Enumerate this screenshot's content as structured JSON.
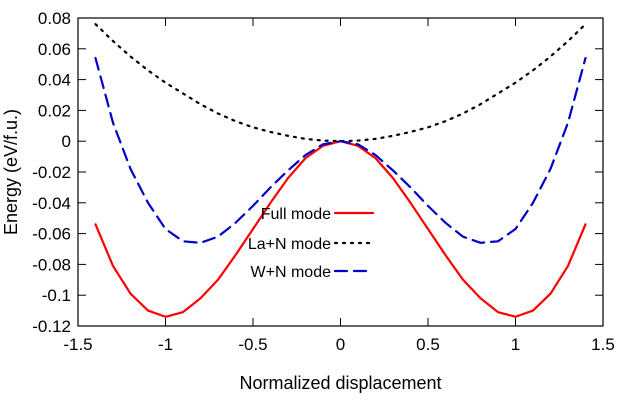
{
  "chart_data": {
    "type": "line",
    "title": "",
    "xlabel": "Normalized displacement",
    "ylabel": "Energy (eV/f.u.)",
    "xlim": [
      -1.5,
      1.5
    ],
    "ylim": [
      -0.12,
      0.08
    ],
    "xticks": [
      -1.5,
      -1,
      -0.5,
      0,
      0.5,
      1,
      1.5
    ],
    "xtick_labels": [
      "-1.5",
      "-1",
      "-0.5",
      "0",
      "0.5",
      "1",
      "1.5"
    ],
    "yticks": [
      0.08,
      0.06,
      0.04,
      0.02,
      0,
      -0.02,
      -0.04,
      -0.06,
      -0.08,
      -0.1,
      -0.12
    ],
    "ytick_labels": [
      "0.08",
      "0.06",
      "0.04",
      "0.02",
      "0",
      "-0.02",
      "-0.04",
      "-0.06",
      "-0.08",
      "-0.1",
      "-0.12"
    ],
    "grid": false,
    "legend_position": "center",
    "series": [
      {
        "name": "Full mode",
        "color": "#ff0000",
        "dash": "solid",
        "x": [
          -1.4,
          -1.3,
          -1.2,
          -1.1,
          -1.0,
          -0.9,
          -0.8,
          -0.7,
          -0.6,
          -0.5,
          -0.4,
          -0.3,
          -0.2,
          -0.1,
          0.0,
          0.1,
          0.2,
          0.3,
          0.4,
          0.5,
          0.6,
          0.7,
          0.8,
          0.9,
          1.0,
          1.1,
          1.2,
          1.3,
          1.4
        ],
        "y": [
          -0.054,
          -0.081,
          -0.099,
          -0.11,
          -0.114,
          -0.111,
          -0.102,
          -0.09,
          -0.074,
          -0.057,
          -0.04,
          -0.024,
          -0.011,
          -0.003,
          0.0,
          -0.003,
          -0.011,
          -0.024,
          -0.04,
          -0.057,
          -0.074,
          -0.09,
          -0.102,
          -0.111,
          -0.114,
          -0.11,
          -0.099,
          -0.081,
          -0.054
        ]
      },
      {
        "name": "La+N mode",
        "color": "#000000",
        "dash": "dot",
        "x": [
          -1.4,
          -1.3,
          -1.2,
          -1.1,
          -1.0,
          -0.9,
          -0.8,
          -0.7,
          -0.6,
          -0.5,
          -0.4,
          -0.3,
          -0.2,
          -0.1,
          0.0,
          0.1,
          0.2,
          0.3,
          0.4,
          0.5,
          0.6,
          0.7,
          0.8,
          0.9,
          1.0,
          1.1,
          1.2,
          1.3,
          1.4
        ],
        "y": [
          0.076,
          0.065,
          0.055,
          0.046,
          0.038,
          0.031,
          0.024,
          0.018,
          0.013,
          0.009,
          0.006,
          0.0035,
          0.0015,
          0.0004,
          0.0,
          0.0004,
          0.0015,
          0.0035,
          0.006,
          0.009,
          0.013,
          0.018,
          0.024,
          0.031,
          0.038,
          0.046,
          0.055,
          0.065,
          0.076
        ]
      },
      {
        "name": "W+N mode",
        "color": "#0000cc",
        "dash": "dash",
        "x": [
          -1.4,
          -1.3,
          -1.2,
          -1.1,
          -1.0,
          -0.9,
          -0.8,
          -0.7,
          -0.6,
          -0.5,
          -0.4,
          -0.3,
          -0.2,
          -0.1,
          0.0,
          0.1,
          0.2,
          0.3,
          0.4,
          0.5,
          0.6,
          0.7,
          0.8,
          0.9,
          1.0,
          1.1,
          1.2,
          1.3,
          1.4
        ],
        "y": [
          0.054,
          0.012,
          -0.018,
          -0.04,
          -0.057,
          -0.065,
          -0.066,
          -0.062,
          -0.053,
          -0.042,
          -0.03,
          -0.019,
          -0.009,
          -0.002,
          0.0,
          -0.002,
          -0.009,
          -0.019,
          -0.03,
          -0.042,
          -0.053,
          -0.062,
          -0.066,
          -0.065,
          -0.057,
          -0.04,
          -0.018,
          0.012,
          0.054
        ]
      }
    ]
  }
}
